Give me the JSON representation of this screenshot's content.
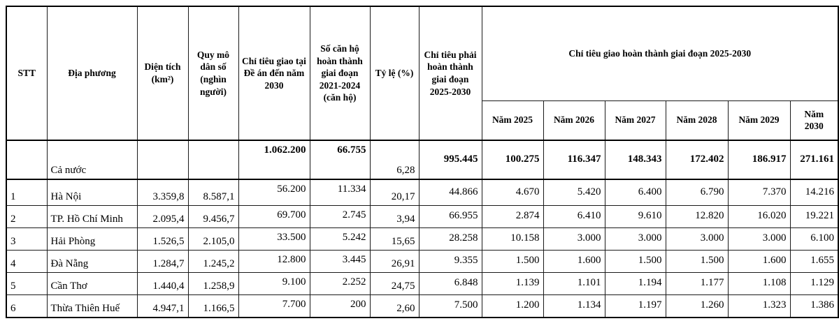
{
  "table": {
    "headers": {
      "stt": "STT",
      "dia_phuong": "Địa phương",
      "dien_tich": "Diện tích (km²)",
      "quy_mo": "Quy mô dân số (nghìn người)",
      "chi_tieu_giao": "Chỉ tiêu giao tại Đề án đến năm 2030",
      "so_can_ho": "Số căn hộ hoàn thành giai đoạn 2021-2024 (căn hộ)",
      "ty_le": "Tỷ lệ (%)",
      "chi_tieu_phai": "Chỉ tiêu phải hoàn thành giai đoạn 2025-2030",
      "group_2025_2030": "Chỉ tiêu giao hoàn thành giai đoạn 2025-2030"
    },
    "year_headers": [
      "Năm 2025",
      "Năm 2026",
      "Năm 2027",
      "Năm 2028",
      "Năm 2029",
      "Năm 2030"
    ],
    "rows": [
      {
        "stt": "",
        "name": "Cả nước",
        "dien_tich": "",
        "quy_mo": "",
        "chi_tieu_giao": "1.062.200",
        "so_can_ho": "66.755",
        "ty_le": "6,28",
        "chi_tieu_phai": "995.445",
        "years": [
          "100.275",
          "116.347",
          "148.343",
          "172.402",
          "186.917",
          "271.161"
        ],
        "bold_values": true
      },
      {
        "stt": "1",
        "name": "Hà Nội",
        "dien_tich": "3.359,8",
        "quy_mo": "8.587,1",
        "chi_tieu_giao": "56.200",
        "so_can_ho": "11.334",
        "ty_le": "20,17",
        "chi_tieu_phai": "44.866",
        "years": [
          "4.670",
          "5.420",
          "6.400",
          "6.790",
          "7.370",
          "14.216"
        ],
        "bold_values": false
      },
      {
        "stt": "2",
        "name": "TP. Hồ Chí Minh",
        "dien_tich": "2.095,4",
        "quy_mo": "9.456,7",
        "chi_tieu_giao": "69.700",
        "so_can_ho": "2.745",
        "ty_le": "3,94",
        "chi_tieu_phai": "66.955",
        "years": [
          "2.874",
          "6.410",
          "9.610",
          "12.820",
          "16.020",
          "19.221"
        ],
        "bold_values": false
      },
      {
        "stt": "3",
        "name": "Hải Phòng",
        "dien_tich": "1.526,5",
        "quy_mo": "2.105,0",
        "chi_tieu_giao": "33.500",
        "so_can_ho": "5.242",
        "ty_le": "15,65",
        "chi_tieu_phai": "28.258",
        "years": [
          "10.158",
          "3.000",
          "3.000",
          "3.000",
          "3.000",
          "6.100"
        ],
        "bold_values": false
      },
      {
        "stt": "4",
        "name": "Đà Nẵng",
        "dien_tich": "1.284,7",
        "quy_mo": "1.245,2",
        "chi_tieu_giao": "12.800",
        "so_can_ho": "3.445",
        "ty_le": "26,91",
        "chi_tieu_phai": "9.355",
        "years": [
          "1.500",
          "1.600",
          "1.500",
          "1.500",
          "1.600",
          "1.655"
        ],
        "bold_values": false
      },
      {
        "stt": "5",
        "name": "Cần Thơ",
        "dien_tich": "1.440,4",
        "quy_mo": "1.258,9",
        "chi_tieu_giao": "9.100",
        "so_can_ho": "2.252",
        "ty_le": "24,75",
        "chi_tieu_phai": "6.848",
        "years": [
          "1.139",
          "1.101",
          "1.194",
          "1.177",
          "1.108",
          "1.129"
        ],
        "bold_values": false
      },
      {
        "stt": "6",
        "name": "Thừa Thiên Huế",
        "dien_tich": "4.947,1",
        "quy_mo": "1.166,5",
        "chi_tieu_giao": "7.700",
        "so_can_ho": "200",
        "ty_le": "2,60",
        "chi_tieu_phai": "7.500",
        "years": [
          "1.200",
          "1.134",
          "1.197",
          "1.260",
          "1.323",
          "1.386"
        ],
        "bold_values": false
      }
    ]
  }
}
